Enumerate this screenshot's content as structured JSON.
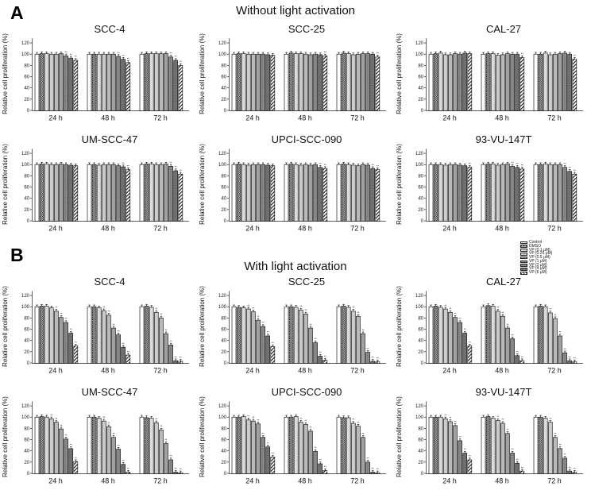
{
  "figure": {
    "panel_a_label": "A",
    "panel_b_label": "B",
    "panel_a_title": "Without light activation",
    "panel_b_title": "With light activation"
  },
  "axes": {
    "ylabel": "Relative cell proliferation (%)",
    "yticks": [
      0,
      20,
      40,
      60,
      80,
      100,
      120
    ],
    "ylim": [
      0,
      130
    ],
    "xticklabels": [
      "24 h",
      "48 h",
      "72 h"
    ]
  },
  "legend": {
    "entries": [
      {
        "label": "Control",
        "pattern": "control"
      },
      {
        "label": "DMSO",
        "pattern": "dmso"
      },
      {
        "label": "VP (0.1 μM)",
        "pattern": "vp01"
      },
      {
        "label": "VP (0.25 μM)",
        "pattern": "vp025"
      },
      {
        "label": "VP (0.5 μM)",
        "pattern": "vp05"
      },
      {
        "label": "VP (1 μM)",
        "pattern": "vp1"
      },
      {
        "label": "VP (2 μM)",
        "pattern": "vp2"
      },
      {
        "label": "VP (4 μM)",
        "pattern": "v4"
      },
      {
        "label": "VP (6 μM)",
        "pattern": "vp6"
      }
    ]
  },
  "chart_data": [
    {
      "type": "bar",
      "panel": "A",
      "title": "SCC-4",
      "categories": [
        "24 h",
        "48 h",
        "72 h"
      ],
      "series": [
        {
          "name": "Control",
          "values": [
            100,
            100,
            100
          ]
        },
        {
          "name": "DMSO",
          "values": [
            101,
            100,
            101
          ]
        },
        {
          "name": "VP (0.1 μM)",
          "values": [
            101,
            100,
            101
          ]
        },
        {
          "name": "VP (0.25 μM)",
          "values": [
            100,
            100,
            101
          ]
        },
        {
          "name": "VP (0.5 μM)",
          "values": [
            100,
            100,
            101
          ]
        },
        {
          "name": "VP (1 μM)",
          "values": [
            101,
            100,
            101
          ]
        },
        {
          "name": "VP (2 μM)",
          "values": [
            97,
            96,
            95
          ]
        },
        {
          "name": "VP (4 μM)",
          "values": [
            93,
            91,
            89
          ]
        },
        {
          "name": "VP (6 μM)",
          "values": [
            89,
            85,
            80
          ]
        }
      ]
    },
    {
      "type": "bar",
      "panel": "A",
      "title": "SCC-25",
      "categories": [
        "24 h",
        "48 h",
        "72 h"
      ],
      "series": [
        {
          "name": "Control",
          "values": [
            100,
            100,
            100
          ]
        },
        {
          "name": "DMSO",
          "values": [
            101,
            102,
            102
          ]
        },
        {
          "name": "VP (0.1 μM)",
          "values": [
            101,
            101,
            101
          ]
        },
        {
          "name": "VP (0.25 μM)",
          "values": [
            100,
            101,
            99
          ]
        },
        {
          "name": "VP (0.5 μM)",
          "values": [
            100,
            100,
            100
          ]
        },
        {
          "name": "VP (1 μM)",
          "values": [
            100,
            99,
            101
          ]
        },
        {
          "name": "VP (2 μM)",
          "values": [
            100,
            100,
            101
          ]
        },
        {
          "name": "VP (4 μM)",
          "values": [
            99,
            99,
            100
          ]
        },
        {
          "name": "VP (6 μM)",
          "values": [
            98,
            97,
            95
          ]
        }
      ]
    },
    {
      "type": "bar",
      "panel": "A",
      "title": "CAL-27",
      "categories": [
        "24 h",
        "48 h",
        "72 h"
      ],
      "series": [
        {
          "name": "Control",
          "values": [
            100,
            100,
            100
          ]
        },
        {
          "name": "DMSO",
          "values": [
            101,
            101,
            100
          ]
        },
        {
          "name": "VP (0.1 μM)",
          "values": [
            102,
            101,
            102
          ]
        },
        {
          "name": "VP (0.25 μM)",
          "values": [
            99,
            98,
            99
          ]
        },
        {
          "name": "VP (0.5 μM)",
          "values": [
            99,
            99,
            100
          ]
        },
        {
          "name": "VP (1 μM)",
          "values": [
            101,
            101,
            101
          ]
        },
        {
          "name": "VP (2 μM)",
          "values": [
            100,
            100,
            102
          ]
        },
        {
          "name": "VP (4 μM)",
          "values": [
            102,
            100,
            100
          ]
        },
        {
          "name": "VP (6 μM)",
          "values": [
            101,
            94,
            91
          ]
        }
      ]
    },
    {
      "type": "bar",
      "panel": "A",
      "title": "UM-SCC-47",
      "categories": [
        "24 h",
        "48 h",
        "72 h"
      ],
      "series": [
        {
          "name": "Control",
          "values": [
            100,
            100,
            100
          ]
        },
        {
          "name": "DMSO",
          "values": [
            101,
            100,
            101
          ]
        },
        {
          "name": "VP (0.1 μM)",
          "values": [
            101,
            99,
            101
          ]
        },
        {
          "name": "VP (0.25 μM)",
          "values": [
            100,
            100,
            100
          ]
        },
        {
          "name": "VP (0.5 μM)",
          "values": [
            100,
            100,
            100
          ]
        },
        {
          "name": "VP (1 μM)",
          "values": [
            101,
            100,
            101
          ]
        },
        {
          "name": "VP (2 μM)",
          "values": [
            100,
            98,
            97
          ]
        },
        {
          "name": "VP (4 μM)",
          "values": [
            99,
            96,
            89
          ]
        },
        {
          "name": "VP (6 μM)",
          "values": [
            98,
            91,
            83
          ]
        }
      ]
    },
    {
      "type": "bar",
      "panel": "A",
      "title": "UPCI-SCC-090",
      "categories": [
        "24 h",
        "48 h",
        "72 h"
      ],
      "series": [
        {
          "name": "Control",
          "values": [
            100,
            100,
            100
          ]
        },
        {
          "name": "DMSO",
          "values": [
            101,
            101,
            101
          ]
        },
        {
          "name": "VP (0.1 μM)",
          "values": [
            100,
            100,
            100
          ]
        },
        {
          "name": "VP (0.25 μM)",
          "values": [
            99,
            99,
            99
          ]
        },
        {
          "name": "VP (0.5 μM)",
          "values": [
            100,
            100,
            98
          ]
        },
        {
          "name": "VP (1 μM)",
          "values": [
            100,
            99,
            100
          ]
        },
        {
          "name": "VP (2 μM)",
          "values": [
            100,
            100,
            99
          ]
        },
        {
          "name": "VP (4 μM)",
          "values": [
            99,
            95,
            93
          ]
        },
        {
          "name": "VP (6 μM)",
          "values": [
            98,
            93,
            91
          ]
        }
      ]
    },
    {
      "type": "bar",
      "panel": "A",
      "title": "93-VU-147T",
      "categories": [
        "24 h",
        "48 h",
        "72 h"
      ],
      "series": [
        {
          "name": "Control",
          "values": [
            100,
            100,
            100
          ]
        },
        {
          "name": "DMSO",
          "values": [
            100,
            101,
            100
          ]
        },
        {
          "name": "VP (0.1 μM)",
          "values": [
            100,
            101,
            101
          ]
        },
        {
          "name": "VP (0.25 μM)",
          "values": [
            99,
            99,
            100
          ]
        },
        {
          "name": "VP (0.5 μM)",
          "values": [
            100,
            100,
            100
          ]
        },
        {
          "name": "VP (1 μM)",
          "values": [
            100,
            101,
            100
          ]
        },
        {
          "name": "VP (2 μM)",
          "values": [
            99,
            97,
            95
          ]
        },
        {
          "name": "VP (4 μM)",
          "values": [
            98,
            95,
            88
          ]
        },
        {
          "name": "VP (6 μM)",
          "values": [
            95,
            92,
            83
          ]
        }
      ]
    },
    {
      "type": "bar",
      "panel": "B",
      "title": "SCC-4",
      "categories": [
        "24 h",
        "48 h",
        "72 h"
      ],
      "series": [
        {
          "name": "Control",
          "values": [
            100,
            100,
            100
          ]
        },
        {
          "name": "DMSO",
          "values": [
            101,
            100,
            101
          ]
        },
        {
          "name": "VP (0.1 μM)",
          "values": [
            101,
            98,
            99
          ]
        },
        {
          "name": "VP (0.25 μM)",
          "values": [
            98,
            93,
            90
          ]
        },
        {
          "name": "VP (0.5 μM)",
          "values": [
            92,
            85,
            80
          ]
        },
        {
          "name": "VP (1 μM)",
          "values": [
            81,
            62,
            52
          ]
        },
        {
          "name": "VP (2 μM)",
          "values": [
            72,
            50,
            32
          ]
        },
        {
          "name": "VP (4 μM)",
          "values": [
            53,
            28,
            4
          ]
        },
        {
          "name": "VP (6 μM)",
          "values": [
            30,
            14,
            3
          ]
        }
      ]
    },
    {
      "type": "bar",
      "panel": "B",
      "title": "SCC-25",
      "categories": [
        "24 h",
        "48 h",
        "72 h"
      ],
      "series": [
        {
          "name": "Control",
          "values": [
            100,
            100,
            100
          ]
        },
        {
          "name": "DMSO",
          "values": [
            99,
            100,
            101
          ]
        },
        {
          "name": "VP (0.1 μM)",
          "values": [
            98,
            99,
            99
          ]
        },
        {
          "name": "VP (0.25 μM)",
          "values": [
            96,
            94,
            92
          ]
        },
        {
          "name": "VP (0.5 μM)",
          "values": [
            91,
            87,
            83
          ]
        },
        {
          "name": "VP (1 μM)",
          "values": [
            76,
            62,
            52
          ]
        },
        {
          "name": "VP (2 μM)",
          "values": [
            65,
            36,
            19
          ]
        },
        {
          "name": "VP (4 μM)",
          "values": [
            48,
            12,
            3
          ]
        },
        {
          "name": "VP (6 μM)",
          "values": [
            29,
            5,
            2
          ]
        }
      ]
    },
    {
      "type": "bar",
      "panel": "B",
      "title": "CAL-27",
      "categories": [
        "24 h",
        "48 h",
        "72 h"
      ],
      "series": [
        {
          "name": "Control",
          "values": [
            100,
            100,
            100
          ]
        },
        {
          "name": "DMSO",
          "values": [
            101,
            102,
            101
          ]
        },
        {
          "name": "VP (0.1 μM)",
          "values": [
            99,
            101,
            100
          ]
        },
        {
          "name": "VP (0.25 μM)",
          "values": [
            96,
            92,
            89
          ]
        },
        {
          "name": "VP (0.5 μM)",
          "values": [
            90,
            83,
            79
          ]
        },
        {
          "name": "VP (1 μM)",
          "values": [
            81,
            62,
            48
          ]
        },
        {
          "name": "VP (2 μM)",
          "values": [
            72,
            43,
            18
          ]
        },
        {
          "name": "VP (4 μM)",
          "values": [
            53,
            13,
            4
          ]
        },
        {
          "name": "VP (6 μM)",
          "values": [
            30,
            4,
            2
          ]
        }
      ]
    },
    {
      "type": "bar",
      "panel": "B",
      "title": "UM-SCC-47",
      "categories": [
        "24 h",
        "48 h",
        "72 h"
      ],
      "series": [
        {
          "name": "Control",
          "values": [
            100,
            100,
            100
          ]
        },
        {
          "name": "DMSO",
          "values": [
            101,
            100,
            99
          ]
        },
        {
          "name": "VP (0.1 μM)",
          "values": [
            100,
            98,
            98
          ]
        },
        {
          "name": "VP (0.25 μM)",
          "values": [
            97,
            93,
            90
          ]
        },
        {
          "name": "VP (0.5 μM)",
          "values": [
            91,
            83,
            77
          ]
        },
        {
          "name": "VP (1 μM)",
          "values": [
            79,
            64,
            53
          ]
        },
        {
          "name": "VP (2 μM)",
          "values": [
            61,
            43,
            24
          ]
        },
        {
          "name": "VP (4 μM)",
          "values": [
            44,
            16,
            2
          ]
        },
        {
          "name": "VP (6 μM)",
          "values": [
            21,
            2,
            1
          ]
        }
      ]
    },
    {
      "type": "bar",
      "panel": "B",
      "title": "UPCI-SCC-090",
      "categories": [
        "24 h",
        "48 h",
        "72 h"
      ],
      "series": [
        {
          "name": "Control",
          "values": [
            100,
            100,
            100
          ]
        },
        {
          "name": "DMSO",
          "values": [
            100,
            100,
            99
          ]
        },
        {
          "name": "VP (0.1 μM)",
          "values": [
            101,
            101,
            99
          ]
        },
        {
          "name": "VP (0.25 μM)",
          "values": [
            95,
            91,
            89
          ]
        },
        {
          "name": "VP (0.5 μM)",
          "values": [
            93,
            87,
            84
          ]
        },
        {
          "name": "VP (1 μM)",
          "values": [
            88,
            75,
            64
          ]
        },
        {
          "name": "VP (2 μM)",
          "values": [
            64,
            39,
            20
          ]
        },
        {
          "name": "VP (4 μM)",
          "values": [
            47,
            17,
            2
          ]
        },
        {
          "name": "VP (6 μM)",
          "values": [
            29,
            5,
            1
          ]
        }
      ]
    },
    {
      "type": "bar",
      "panel": "B",
      "title": "93-VU-147T",
      "categories": [
        "24 h",
        "48 h",
        "72 h"
      ],
      "series": [
        {
          "name": "Control",
          "values": [
            100,
            100,
            100
          ]
        },
        {
          "name": "DMSO",
          "values": [
            100,
            101,
            100
          ]
        },
        {
          "name": "VP (0.1 μM)",
          "values": [
            100,
            98,
            98
          ]
        },
        {
          "name": "VP (0.25 μM)",
          "values": [
            97,
            94,
            91
          ]
        },
        {
          "name": "VP (0.5 μM)",
          "values": [
            92,
            89,
            64
          ]
        },
        {
          "name": "VP (1 μM)",
          "values": [
            85,
            71,
            44
          ]
        },
        {
          "name": "VP (2 μM)",
          "values": [
            58,
            36,
            27
          ]
        },
        {
          "name": "VP (4 μM)",
          "values": [
            36,
            18,
            4
          ]
        },
        {
          "name": "VP (6 μM)",
          "values": [
            24,
            4,
            2
          ]
        }
      ]
    }
  ]
}
